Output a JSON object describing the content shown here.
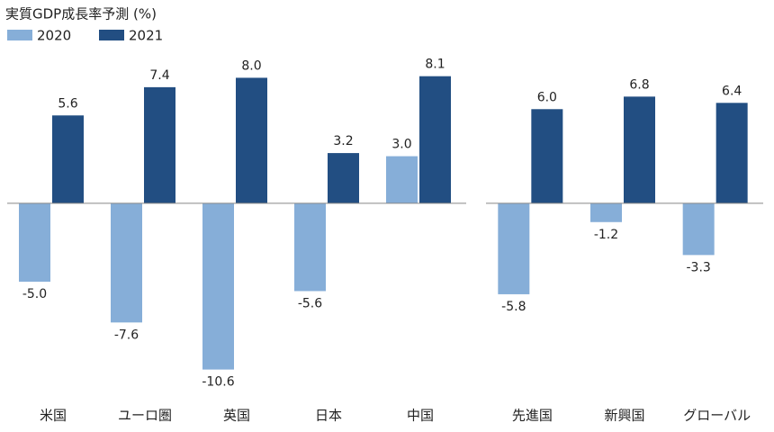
{
  "chart_data": [
    {
      "type": "bar",
      "title": "実質GDP成長率予測 (%)",
      "categories": [
        "米国",
        "ユーロ圏",
        "英国",
        "日本",
        "中国"
      ],
      "series": [
        {
          "name": "2020",
          "color": "#86aed8",
          "values": [
            -5.0,
            -7.6,
            -10.6,
            -5.6,
            3.0
          ],
          "value_labels": [
            "-5.0",
            "-7.6",
            "-10.6",
            "-5.6",
            "3.0"
          ]
        },
        {
          "name": "2021",
          "color": "#224e82",
          "values": [
            5.6,
            7.4,
            8.0,
            3.2,
            8.1
          ],
          "value_labels": [
            "5.6",
            "7.4",
            "8.0",
            "3.2",
            "8.1"
          ]
        }
      ],
      "ylim": [
        -12,
        9
      ]
    },
    {
      "type": "bar",
      "categories": [
        "先進国",
        "新興国",
        "グローバル"
      ],
      "series": [
        {
          "color": "#86aed8",
          "values": [
            -5.8,
            -1.2,
            -3.3
          ],
          "value_labels": [
            "-5.8",
            "-1.2",
            "-3.3"
          ]
        },
        {
          "color": "#224e82",
          "values": [
            6.0,
            6.8,
            6.4
          ],
          "value_labels": [
            "6.0",
            "6.8",
            "6.4"
          ]
        }
      ],
      "ylim": [
        -12,
        9
      ]
    }
  ]
}
